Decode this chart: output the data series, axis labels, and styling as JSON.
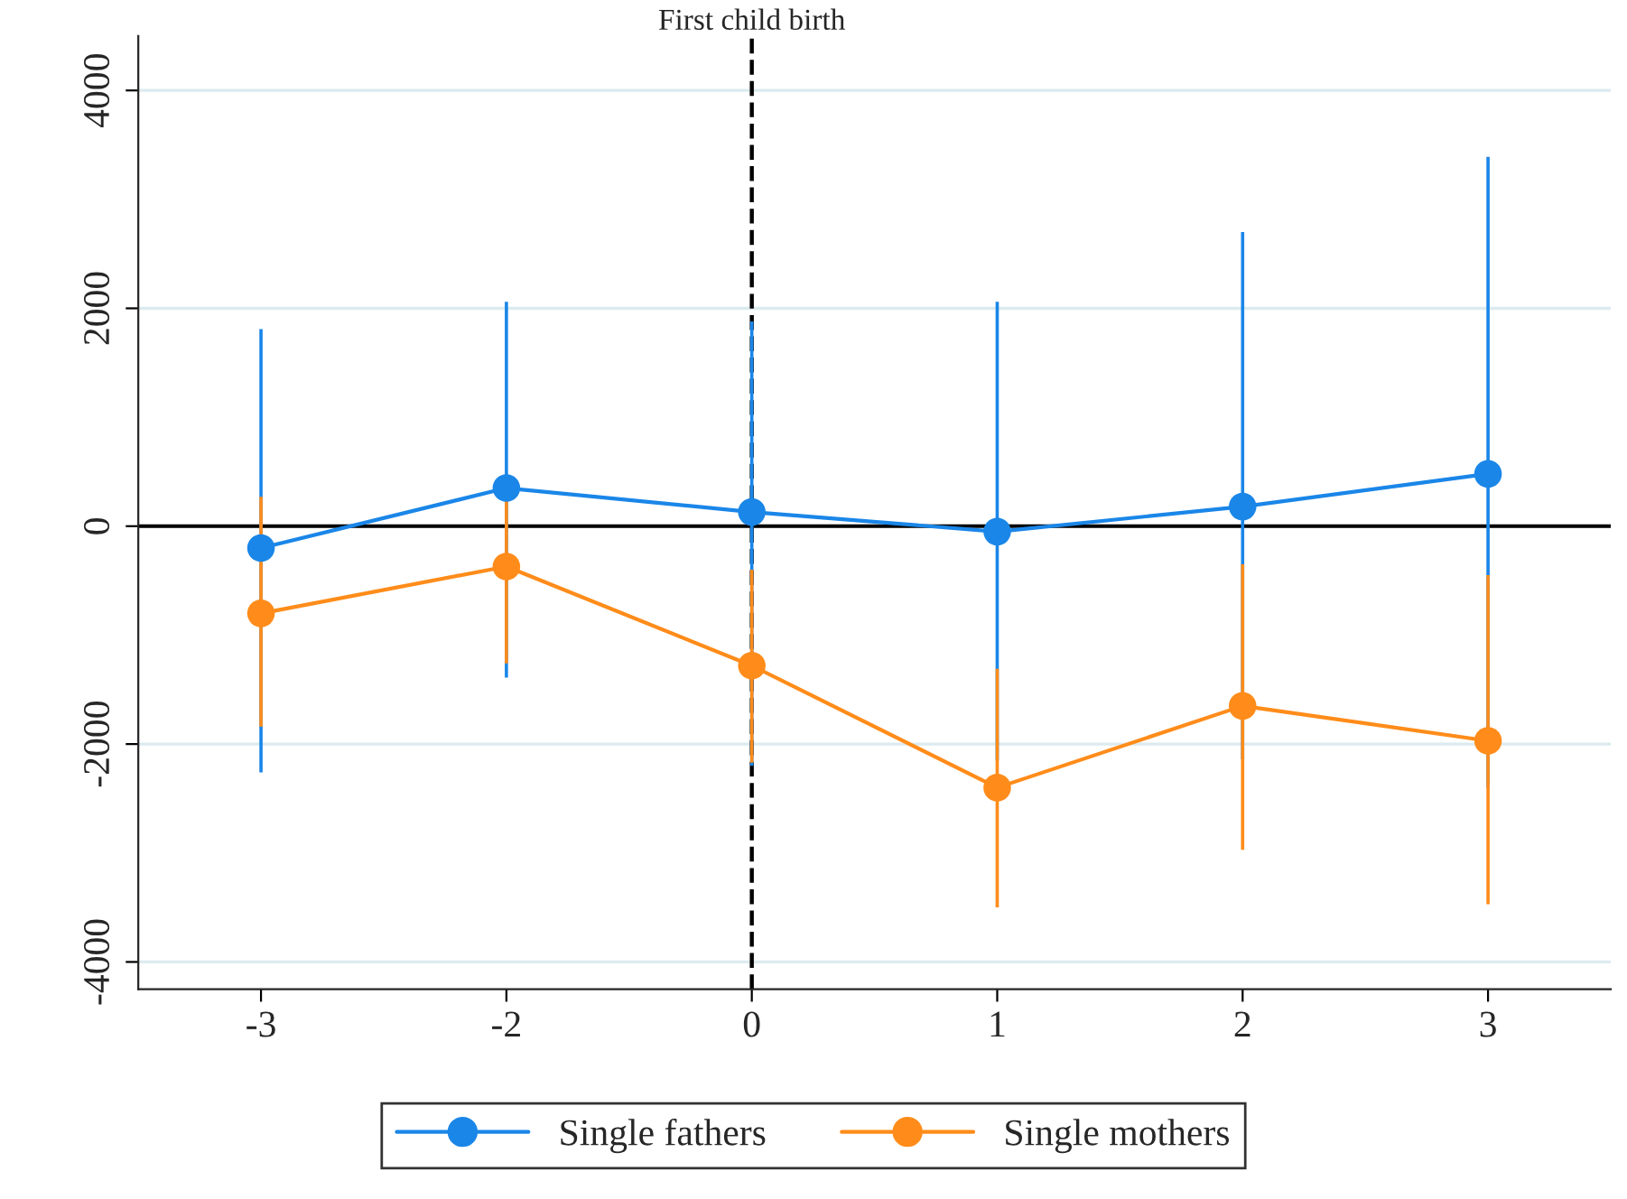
{
  "chart_data": {
    "type": "line",
    "categories": [
      "-3",
      "-2",
      "0",
      "1",
      "2",
      "3"
    ],
    "series": [
      {
        "name": "Single fathers",
        "color": "#1a86e8",
        "values": [
          -200,
          350,
          130,
          -50,
          180,
          480
        ],
        "errors": [
          [
            -2260,
            1810
          ],
          [
            -1390,
            2060
          ],
          [
            -2200,
            1880
          ],
          [
            -2150,
            2060
          ],
          [
            -2140,
            2700
          ],
          [
            -2400,
            3390
          ]
        ]
      },
      {
        "name": "Single mothers",
        "color": "#ff8c1a",
        "values": [
          -800,
          -370,
          -1280,
          -2400,
          -1650,
          -1970
        ],
        "errors": [
          [
            -1840,
            270
          ],
          [
            -1260,
            430
          ],
          [
            -2170,
            -400
          ],
          [
            -3500,
            -1310
          ],
          [
            -2970,
            -350
          ],
          [
            -3470,
            -450
          ]
        ]
      }
    ],
    "ylim": [
      -4250,
      4500
    ],
    "yticks": [
      -4000,
      -2000,
      0,
      2000,
      4000
    ],
    "ref_lines": [
      {
        "axis": "y",
        "value": 0,
        "color": "#000000",
        "line_style": "solid"
      },
      {
        "axis": "x",
        "value": "0",
        "label": "First child birth",
        "color": "#000000",
        "line_style": "dashed"
      }
    ],
    "grid": "y",
    "legend": "bottom",
    "marker": "circle",
    "line_style": "solid"
  }
}
